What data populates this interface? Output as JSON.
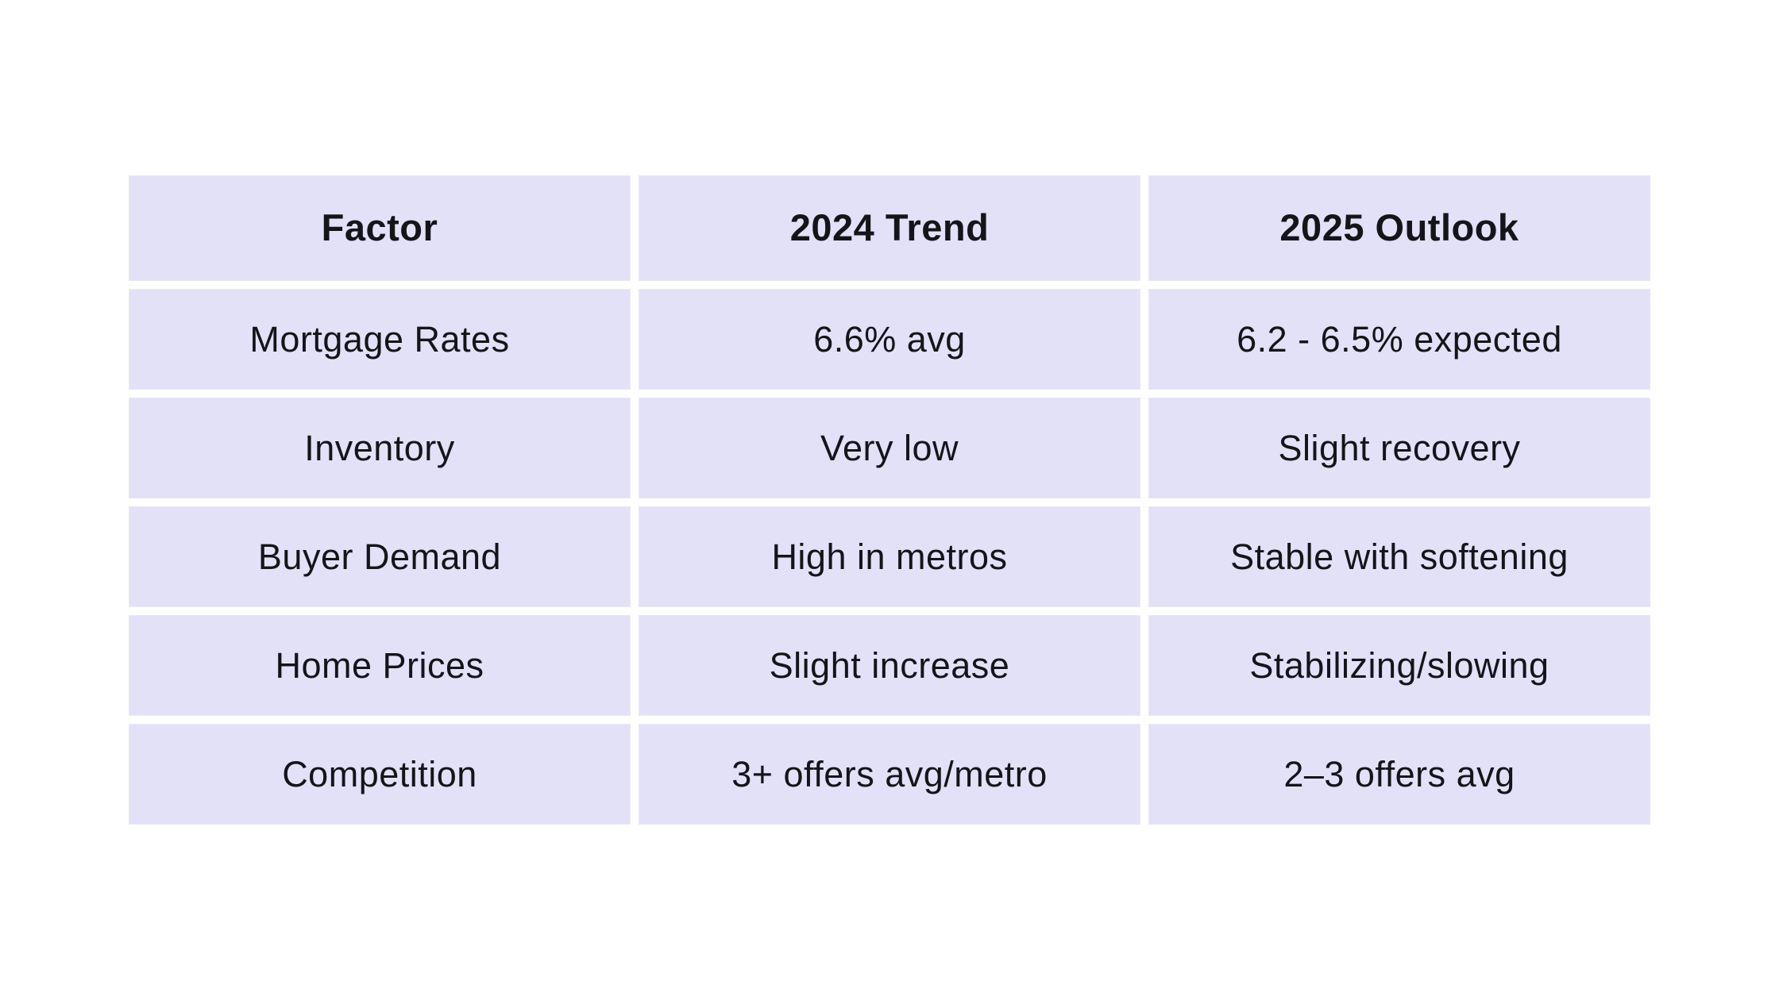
{
  "chart_data": {
    "type": "table",
    "columns": [
      "Factor",
      "2024 Trend",
      "2025 Outlook"
    ],
    "rows": [
      [
        "Mortgage Rates",
        "6.6% avg",
        "6.2 - 6.5% expected"
      ],
      [
        "Inventory",
        "Very low",
        "Slight recovery"
      ],
      [
        "Buyer Demand",
        "High in metros",
        "Stable with softening"
      ],
      [
        "Home Prices",
        "Slight increase",
        "Stabilizing/slowing"
      ],
      [
        "Competition",
        "3+ offers avg/metro",
        "2–3 offers avg"
      ]
    ],
    "title": "",
    "legend": "none",
    "grid": "white gutters between lavender cells"
  },
  "colors": {
    "page_background": "#ffffff",
    "cell_background": "#e2e1f8",
    "cell_border": "#e9e8f4",
    "text_color": "#151419"
  }
}
